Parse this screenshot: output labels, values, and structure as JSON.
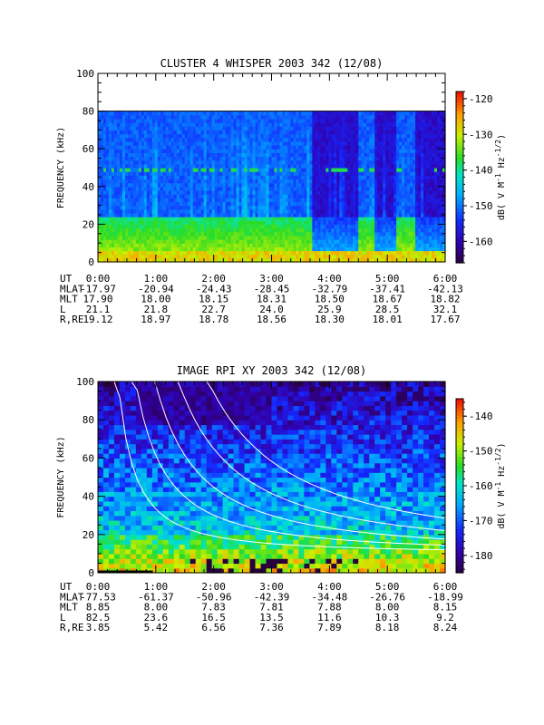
{
  "chart_data": [
    {
      "type": "heatmap",
      "title": "CLUSTER 4 WHISPER 2003 342 (12/08)",
      "ylabel": "FREQUENCY (kHz)",
      "ylim": [
        0,
        100
      ],
      "yticks": [
        "0",
        "20",
        "40",
        "60",
        "80",
        "100"
      ],
      "data_ymax": 80,
      "xlim_hours": [
        0,
        6
      ],
      "colorbar": {
        "label_main": "dB( V M",
        "label_sup1": "-1",
        "label_mid": " Hz",
        "label_sup2": "-1/2",
        "label_end": ")",
        "range": [
          -166,
          -118
        ],
        "ticks": [
          "-120",
          "-130",
          "-140",
          "-150",
          "-160"
        ],
        "tick_values": [
          -120,
          -130,
          -140,
          -150,
          -160
        ]
      },
      "ephemeris": {
        "row_labels": [
          "UT",
          "MLAT",
          "MLT",
          "L",
          "R,RE"
        ],
        "ut": [
          "0:00",
          "1:00",
          "2:00",
          "3:00",
          "4:00",
          "5:00",
          "6:00"
        ],
        "mlat": [
          "-17.97",
          "-20.94",
          "-24.43",
          "-28.45",
          "-32.79",
          "-37.41",
          "-42.13"
        ],
        "mlt": [
          "17.90",
          "18.00",
          "18.15",
          "18.31",
          "18.50",
          "18.67",
          "18.82"
        ],
        "l": [
          "21.1",
          "21.8",
          "22.7",
          "24.0",
          "25.9",
          "28.5",
          "32.1"
        ],
        "r_re": [
          "19.12",
          "18.97",
          "18.78",
          "18.56",
          "18.30",
          "18.01",
          "17.67"
        ]
      }
    },
    {
      "type": "heatmap",
      "title": "IMAGE RPI XY 2003 342 (12/08)",
      "ylabel": "FREQUENCY (kHz)",
      "ylim": [
        0,
        100
      ],
      "yticks": [
        "0",
        "20",
        "40",
        "60",
        "80",
        "100"
      ],
      "xlim_hours": [
        0,
        6
      ],
      "colorbar": {
        "label_main": "dB( V M",
        "label_sup1": "-1",
        "label_mid": " Hz",
        "label_sup2": "-1/2",
        "label_end": ")",
        "range": [
          -185,
          -135
        ],
        "ticks": [
          "-140",
          "-150",
          "-160",
          "-170",
          "-180"
        ],
        "tick_values": [
          -140,
          -150,
          -160,
          -170,
          -180
        ]
      },
      "ephemeris": {
        "row_labels": [
          "UT",
          "MLAT",
          "MLT",
          "L",
          "R,RE"
        ],
        "ut": [
          "0:00",
          "1:00",
          "2:00",
          "3:00",
          "4:00",
          "5:00",
          "6:00"
        ],
        "mlat": [
          "-77.53",
          "-61.37",
          "-50.96",
          "-42.39",
          "-34.48",
          "-26.76",
          "-18.99"
        ],
        "mlt": [
          "8.85",
          "8.00",
          "7.83",
          "7.81",
          "7.88",
          "8.00",
          "8.15"
        ],
        "l": [
          "82.5",
          "23.6",
          "16.5",
          "13.5",
          "11.6",
          "10.3",
          "9.2"
        ],
        "r_re": [
          "3.85",
          "5.42",
          "6.56",
          "7.36",
          "7.89",
          "8.18",
          "8.24"
        ]
      }
    }
  ]
}
